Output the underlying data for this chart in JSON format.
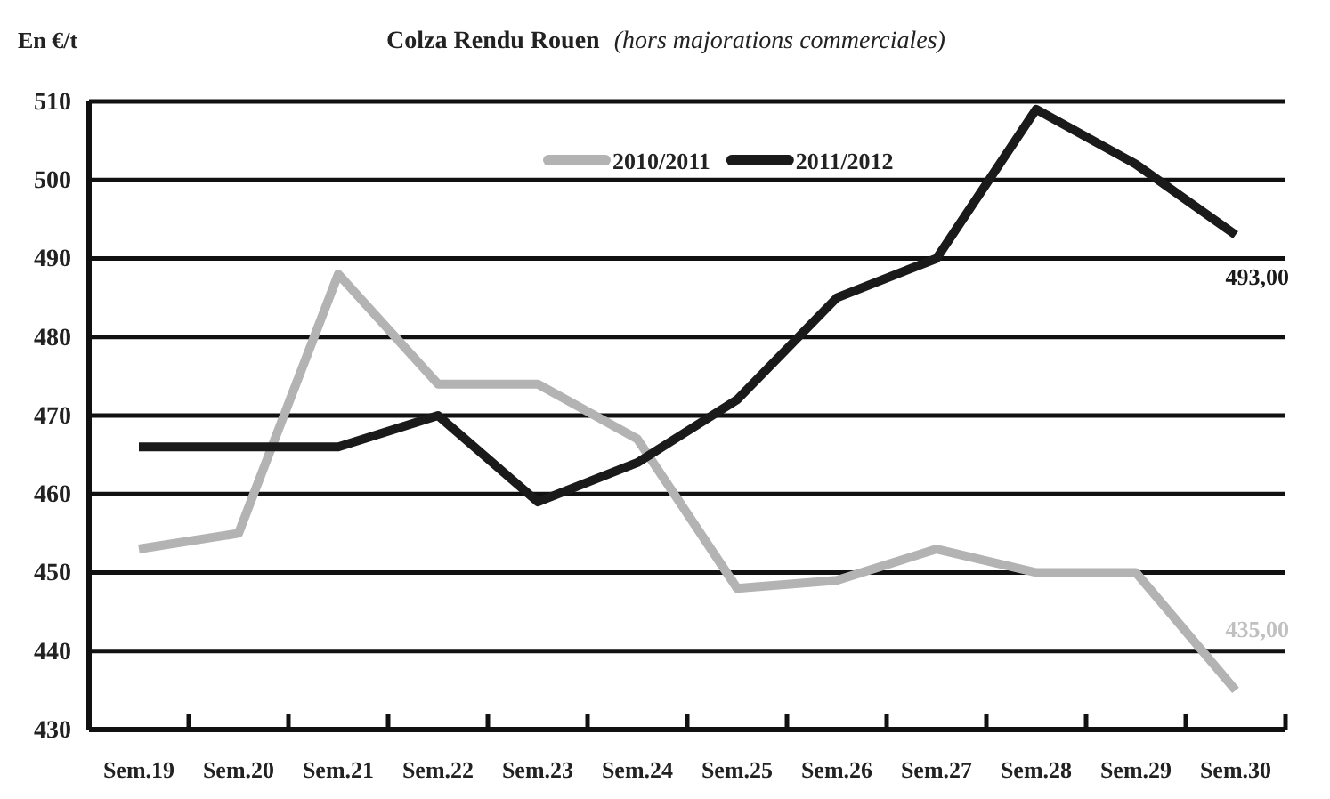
{
  "chart_data": {
    "type": "line",
    "title": "Colza Rendu Rouen",
    "subtitle": "(hors majorations commerciales)",
    "ylabel": "En €/t",
    "categories": [
      "Sem.19",
      "Sem.20",
      "Sem.21",
      "Sem.22",
      "Sem.23",
      "Sem.24",
      "Sem.25",
      "Sem.26",
      "Sem.27",
      "Sem.28",
      "Sem.29",
      "Sem.30"
    ],
    "series": [
      {
        "name": "2010/2011",
        "color": "#b3b3b3",
        "values": [
          453,
          455,
          488,
          474,
          474,
          467,
          448,
          449,
          453,
          450,
          450,
          435
        ]
      },
      {
        "name": "2011/2012",
        "color": "#1a1a1a",
        "values": [
          466,
          466,
          466,
          470,
          459,
          464,
          472,
          485,
          490,
          509,
          502,
          493
        ]
      }
    ],
    "ylim": [
      430,
      510
    ],
    "yticks": [
      430,
      440,
      450,
      460,
      470,
      480,
      490,
      500,
      510
    ],
    "grid": "y",
    "legend": "top",
    "marker": "none",
    "line_style": "solid",
    "annotations": [
      {
        "text": "493,00",
        "x": "Sem.30",
        "y": 493
      },
      {
        "text": "435,00",
        "x": "Sem.30",
        "y": 435
      }
    ]
  }
}
